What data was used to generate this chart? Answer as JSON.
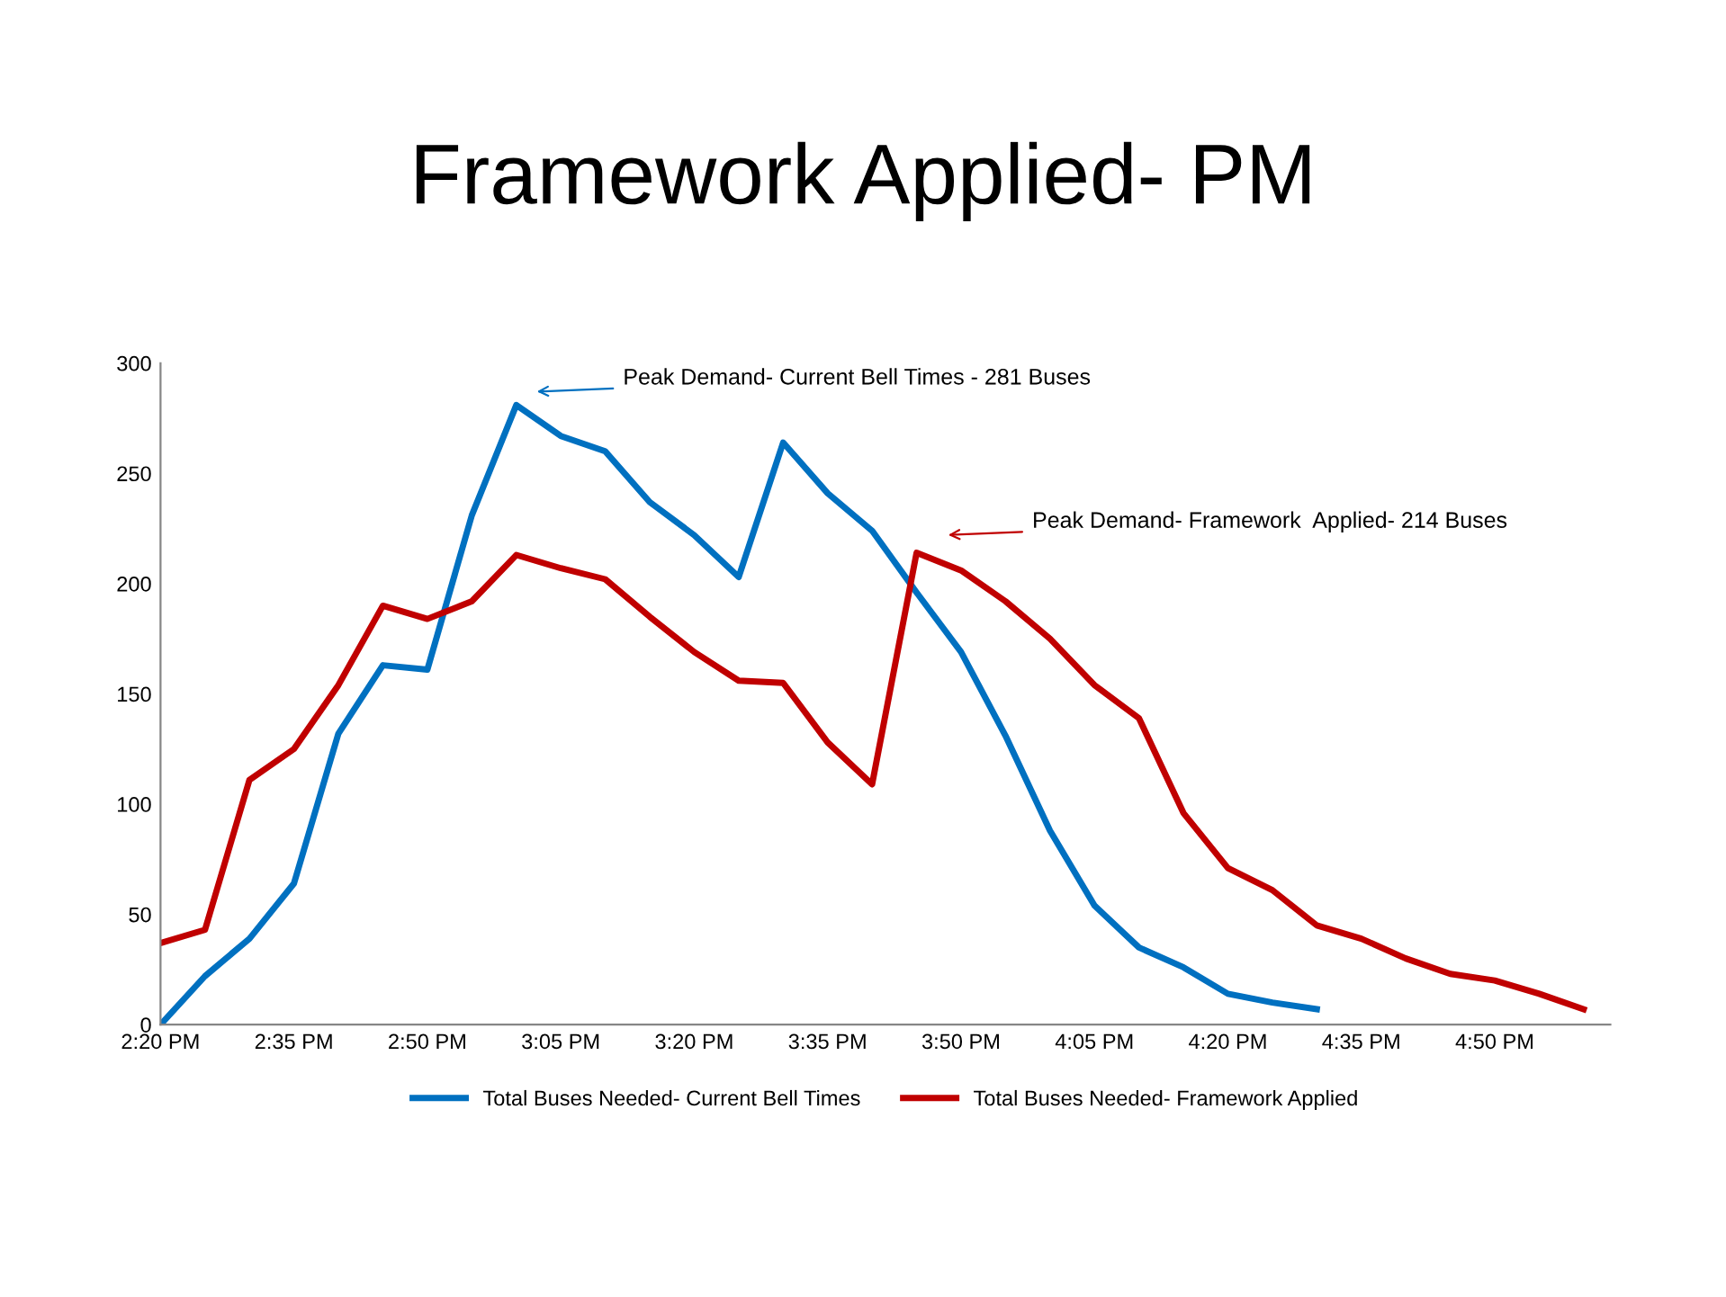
{
  "chart_data": {
    "type": "line",
    "title": "Framework Applied- PM",
    "categories": [
      "2:20 PM",
      null,
      null,
      "2:35 PM",
      null,
      null,
      "2:50 PM",
      null,
      null,
      "3:05 PM",
      null,
      null,
      "3:20 PM",
      null,
      null,
      "3:35 PM",
      null,
      null,
      "3:50 PM",
      null,
      null,
      "4:05 PM",
      null,
      null,
      "4:20 PM",
      null,
      null,
      "4:35 PM",
      null,
      null,
      "4:50 PM",
      null,
      null
    ],
    "series": [
      {
        "name": "Total Buses Needed- Current Bell Times",
        "color": "#0070c0",
        "values": [
          0,
          22,
          39,
          64,
          132,
          163,
          161,
          231,
          281,
          267,
          260,
          237,
          222,
          203,
          264,
          241,
          224,
          196,
          169,
          131,
          88,
          54,
          35,
          26,
          14,
          10,
          7,
          null,
          null,
          null,
          null,
          null,
          null
        ]
      },
      {
        "name": "Total Buses Needed- Framework Applied",
        "color": "#c00000",
        "values": [
          37,
          43,
          111,
          125,
          154,
          190,
          184,
          192,
          213,
          207,
          202,
          185,
          169,
          156,
          155,
          128,
          109,
          214,
          206,
          192,
          175,
          154,
          139,
          96,
          71,
          61,
          45,
          39,
          30,
          23,
          20,
          14,
          7
        ]
      }
    ],
    "annotations": [
      "Peak Demand- Current Bell Times - 281 Buses",
      "Peak Demand- Framework  Applied- 214 Buses"
    ],
    "ylim": [
      0,
      300
    ],
    "yticks": [
      0,
      50,
      100,
      150,
      200,
      250,
      300
    ],
    "grid": false,
    "legend": "bottom",
    "marker": "none",
    "line_style": "solid"
  }
}
